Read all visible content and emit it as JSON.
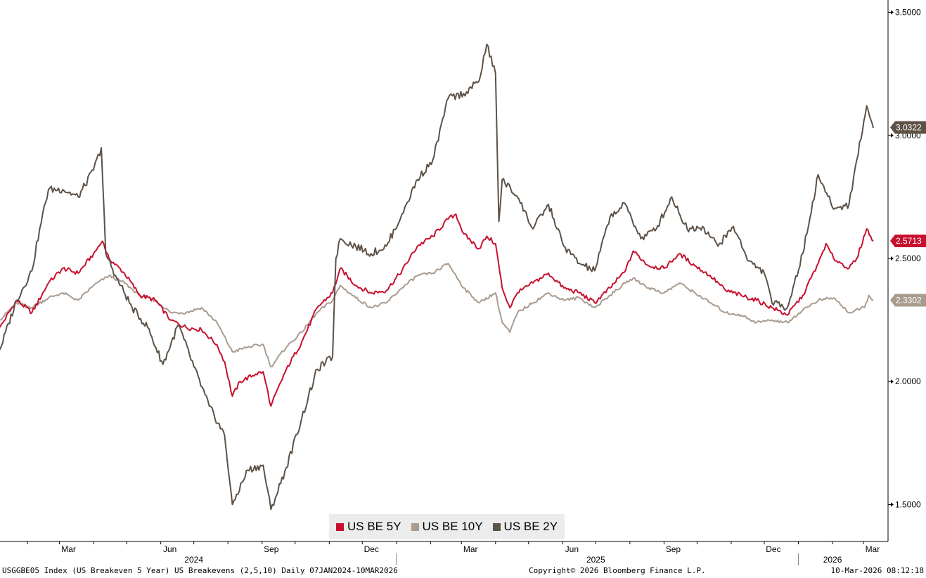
{
  "chart_data": {
    "type": "line",
    "y_axis_side": "right",
    "ylim": [
      1.35,
      3.55
    ],
    "y_ticks": [
      "1.5000",
      "2.0000",
      "2.5000",
      "3.0000",
      "3.5000"
    ],
    "x_range": [
      "2024-01-07",
      "2026-03-10"
    ],
    "x_month_ticks": [
      {
        "date": "2024-03-01",
        "label": "Mar"
      },
      {
        "date": "2024-06-01",
        "label": "Jun"
      },
      {
        "date": "2024-09-01",
        "label": "Sep"
      },
      {
        "date": "2024-12-01",
        "label": "Dec"
      },
      {
        "date": "2025-03-01",
        "label": "Mar"
      },
      {
        "date": "2025-06-01",
        "label": "Jun"
      },
      {
        "date": "2025-09-01",
        "label": "Sep"
      },
      {
        "date": "2025-12-01",
        "label": "Dec"
      },
      {
        "date": "2026-03-01",
        "label": "Mar"
      }
    ],
    "x_year_labels": [
      {
        "center": "2024-07-01",
        "label": "2024"
      },
      {
        "center": "2025-07-01",
        "label": "2025"
      },
      {
        "center": "2026-02-01",
        "label": "2026"
      }
    ],
    "year_separators": [
      "2025-01-01",
      "2026-01-01"
    ],
    "grid": false,
    "legend_position": "bottom-center",
    "series": [
      {
        "name": "US BE 5Y",
        "color": "#c8102e",
        "last_value": "2.5713",
        "points": [
          [
            "2024-01-07",
            2.22
          ],
          [
            "2024-01-22",
            2.33
          ],
          [
            "2024-02-05",
            2.28
          ],
          [
            "2024-02-20",
            2.4
          ],
          [
            "2024-03-04",
            2.46
          ],
          [
            "2024-03-18",
            2.44
          ],
          [
            "2024-04-01",
            2.52
          ],
          [
            "2024-04-09",
            2.57
          ],
          [
            "2024-04-15",
            2.5
          ],
          [
            "2024-04-29",
            2.44
          ],
          [
            "2024-05-13",
            2.35
          ],
          [
            "2024-05-27",
            2.33
          ],
          [
            "2024-06-10",
            2.25
          ],
          [
            "2024-06-24",
            2.22
          ],
          [
            "2024-07-08",
            2.21
          ],
          [
            "2024-07-22",
            2.15
          ],
          [
            "2024-07-29",
            2.08
          ],
          [
            "2024-08-05",
            1.94
          ],
          [
            "2024-08-12",
            2.0
          ],
          [
            "2024-08-26",
            2.03
          ],
          [
            "2024-09-02",
            2.04
          ],
          [
            "2024-09-09",
            1.9
          ],
          [
            "2024-09-23",
            2.05
          ],
          [
            "2024-10-07",
            2.16
          ],
          [
            "2024-10-21",
            2.3
          ],
          [
            "2024-11-04",
            2.36
          ],
          [
            "2024-11-11",
            2.46
          ],
          [
            "2024-11-25",
            2.39
          ],
          [
            "2024-12-09",
            2.36
          ],
          [
            "2024-12-23",
            2.37
          ],
          [
            "2025-01-06",
            2.45
          ],
          [
            "2025-01-20",
            2.55
          ],
          [
            "2025-02-03",
            2.59
          ],
          [
            "2025-02-17",
            2.66
          ],
          [
            "2025-02-24",
            2.68
          ],
          [
            "2025-03-03",
            2.6
          ],
          [
            "2025-03-17",
            2.54
          ],
          [
            "2025-03-24",
            2.59
          ],
          [
            "2025-04-01",
            2.56
          ],
          [
            "2025-04-07",
            2.38
          ],
          [
            "2025-04-14",
            2.3
          ],
          [
            "2025-04-21",
            2.36
          ],
          [
            "2025-05-05",
            2.4
          ],
          [
            "2025-05-19",
            2.44
          ],
          [
            "2025-06-02",
            2.38
          ],
          [
            "2025-06-16",
            2.36
          ],
          [
            "2025-06-30",
            2.32
          ],
          [
            "2025-07-14",
            2.38
          ],
          [
            "2025-07-28",
            2.45
          ],
          [
            "2025-08-04",
            2.53
          ],
          [
            "2025-08-18",
            2.47
          ],
          [
            "2025-09-01",
            2.46
          ],
          [
            "2025-09-15",
            2.52
          ],
          [
            "2025-09-29",
            2.47
          ],
          [
            "2025-10-13",
            2.43
          ],
          [
            "2025-10-27",
            2.37
          ],
          [
            "2025-11-10",
            2.35
          ],
          [
            "2025-11-24",
            2.33
          ],
          [
            "2025-12-08",
            2.3
          ],
          [
            "2025-12-22",
            2.27
          ],
          [
            "2026-01-05",
            2.35
          ],
          [
            "2026-01-19",
            2.48
          ],
          [
            "2026-01-26",
            2.56
          ],
          [
            "2026-02-02",
            2.5
          ],
          [
            "2026-02-16",
            2.46
          ],
          [
            "2026-02-23",
            2.5
          ],
          [
            "2026-03-04",
            2.62
          ],
          [
            "2026-03-10",
            2.57
          ]
        ]
      },
      {
        "name": "US BE 10Y",
        "color": "#a99b8e",
        "last_value": "2.3302",
        "points": [
          [
            "2024-01-07",
            2.25
          ],
          [
            "2024-01-22",
            2.32
          ],
          [
            "2024-02-05",
            2.3
          ],
          [
            "2024-02-20",
            2.34
          ],
          [
            "2024-03-04",
            2.36
          ],
          [
            "2024-03-18",
            2.33
          ],
          [
            "2024-04-01",
            2.39
          ],
          [
            "2024-04-15",
            2.43
          ],
          [
            "2024-04-29",
            2.4
          ],
          [
            "2024-05-13",
            2.35
          ],
          [
            "2024-05-27",
            2.33
          ],
          [
            "2024-06-10",
            2.28
          ],
          [
            "2024-06-24",
            2.28
          ],
          [
            "2024-07-08",
            2.3
          ],
          [
            "2024-07-22",
            2.24
          ],
          [
            "2024-08-05",
            2.12
          ],
          [
            "2024-08-19",
            2.14
          ],
          [
            "2024-09-02",
            2.15
          ],
          [
            "2024-09-09",
            2.06
          ],
          [
            "2024-09-23",
            2.14
          ],
          [
            "2024-10-07",
            2.2
          ],
          [
            "2024-10-21",
            2.28
          ],
          [
            "2024-11-04",
            2.33
          ],
          [
            "2024-11-11",
            2.39
          ],
          [
            "2024-11-25",
            2.34
          ],
          [
            "2024-12-09",
            2.3
          ],
          [
            "2024-12-23",
            2.32
          ],
          [
            "2025-01-06",
            2.38
          ],
          [
            "2025-01-20",
            2.43
          ],
          [
            "2025-02-03",
            2.44
          ],
          [
            "2025-02-17",
            2.48
          ],
          [
            "2025-03-03",
            2.38
          ],
          [
            "2025-03-17",
            2.32
          ],
          [
            "2025-04-01",
            2.36
          ],
          [
            "2025-04-07",
            2.24
          ],
          [
            "2025-04-14",
            2.2
          ],
          [
            "2025-04-21",
            2.28
          ],
          [
            "2025-05-05",
            2.32
          ],
          [
            "2025-05-19",
            2.36
          ],
          [
            "2025-06-02",
            2.33
          ],
          [
            "2025-06-16",
            2.34
          ],
          [
            "2025-06-30",
            2.3
          ],
          [
            "2025-07-14",
            2.35
          ],
          [
            "2025-07-28",
            2.4
          ],
          [
            "2025-08-04",
            2.42
          ],
          [
            "2025-08-18",
            2.38
          ],
          [
            "2025-09-01",
            2.36
          ],
          [
            "2025-09-15",
            2.4
          ],
          [
            "2025-09-29",
            2.36
          ],
          [
            "2025-10-13",
            2.32
          ],
          [
            "2025-10-27",
            2.28
          ],
          [
            "2025-11-10",
            2.27
          ],
          [
            "2025-11-24",
            2.24
          ],
          [
            "2025-12-08",
            2.25
          ],
          [
            "2025-12-22",
            2.24
          ],
          [
            "2026-01-05",
            2.29
          ],
          [
            "2026-01-19",
            2.33
          ],
          [
            "2026-02-02",
            2.34
          ],
          [
            "2026-02-16",
            2.28
          ],
          [
            "2026-03-02",
            2.3
          ],
          [
            "2026-03-06",
            2.35
          ],
          [
            "2026-03-10",
            2.33
          ]
        ]
      },
      {
        "name": "US BE 2Y",
        "color": "#5e5146",
        "last_value": "3.0322",
        "points": [
          [
            "2024-01-07",
            2.13
          ],
          [
            "2024-01-22",
            2.33
          ],
          [
            "2024-02-05",
            2.45
          ],
          [
            "2024-02-12",
            2.62
          ],
          [
            "2024-02-20",
            2.78
          ],
          [
            "2024-03-04",
            2.78
          ],
          [
            "2024-03-18",
            2.75
          ],
          [
            "2024-04-01",
            2.86
          ],
          [
            "2024-04-08",
            2.95
          ],
          [
            "2024-04-12",
            2.52
          ],
          [
            "2024-04-22",
            2.42
          ],
          [
            "2024-05-06",
            2.3
          ],
          [
            "2024-05-20",
            2.22
          ],
          [
            "2024-06-03",
            2.07
          ],
          [
            "2024-06-17",
            2.23
          ],
          [
            "2024-07-01",
            2.06
          ],
          [
            "2024-07-15",
            1.9
          ],
          [
            "2024-07-29",
            1.78
          ],
          [
            "2024-08-05",
            1.5
          ],
          [
            "2024-08-19",
            1.64
          ],
          [
            "2024-09-02",
            1.66
          ],
          [
            "2024-09-09",
            1.48
          ],
          [
            "2024-09-23",
            1.65
          ],
          [
            "2024-10-07",
            1.85
          ],
          [
            "2024-10-21",
            2.05
          ],
          [
            "2024-11-04",
            2.1
          ],
          [
            "2024-11-07",
            2.5
          ],
          [
            "2024-11-11",
            2.58
          ],
          [
            "2024-11-25",
            2.55
          ],
          [
            "2024-12-09",
            2.52
          ],
          [
            "2024-12-23",
            2.55
          ],
          [
            "2025-01-06",
            2.68
          ],
          [
            "2025-01-20",
            2.82
          ],
          [
            "2025-02-03",
            2.9
          ],
          [
            "2025-02-17",
            3.15
          ],
          [
            "2025-03-03",
            3.17
          ],
          [
            "2025-03-17",
            3.22
          ],
          [
            "2025-03-24",
            3.37
          ],
          [
            "2025-04-01",
            3.25
          ],
          [
            "2025-04-04",
            2.65
          ],
          [
            "2025-04-07",
            2.82
          ],
          [
            "2025-04-21",
            2.75
          ],
          [
            "2025-05-05",
            2.62
          ],
          [
            "2025-05-19",
            2.72
          ],
          [
            "2025-06-02",
            2.55
          ],
          [
            "2025-06-16",
            2.48
          ],
          [
            "2025-06-30",
            2.45
          ],
          [
            "2025-07-14",
            2.67
          ],
          [
            "2025-07-28",
            2.72
          ],
          [
            "2025-08-11",
            2.58
          ],
          [
            "2025-08-25",
            2.62
          ],
          [
            "2025-09-08",
            2.75
          ],
          [
            "2025-09-22",
            2.62
          ],
          [
            "2025-10-06",
            2.63
          ],
          [
            "2025-10-20",
            2.55
          ],
          [
            "2025-11-03",
            2.63
          ],
          [
            "2025-11-17",
            2.49
          ],
          [
            "2025-12-01",
            2.44
          ],
          [
            "2025-12-08",
            2.32
          ],
          [
            "2025-12-22",
            2.3
          ],
          [
            "2026-01-05",
            2.52
          ],
          [
            "2026-01-19",
            2.84
          ],
          [
            "2026-02-02",
            2.7
          ],
          [
            "2026-02-16",
            2.72
          ],
          [
            "2026-02-23",
            2.9
          ],
          [
            "2026-03-04",
            3.12
          ],
          [
            "2026-03-10",
            3.03
          ]
        ]
      }
    ]
  },
  "legend": [
    {
      "label": "US BE 5Y",
      "color": "#c8102e"
    },
    {
      "label": "US BE 10Y",
      "color": "#a99b8e"
    },
    {
      "label": "US BE 2Y",
      "color": "#5e5146"
    }
  ],
  "footer": {
    "left": "USGGBE05 Index (US Breakeven 5 Year) US Breakevens (2,5,10) Daily 07JAN2024-10MAR2026",
    "center": "Copyright© 2026 Bloomberg Finance L.P.",
    "right": "10-Mar-2026 08:12:18"
  }
}
